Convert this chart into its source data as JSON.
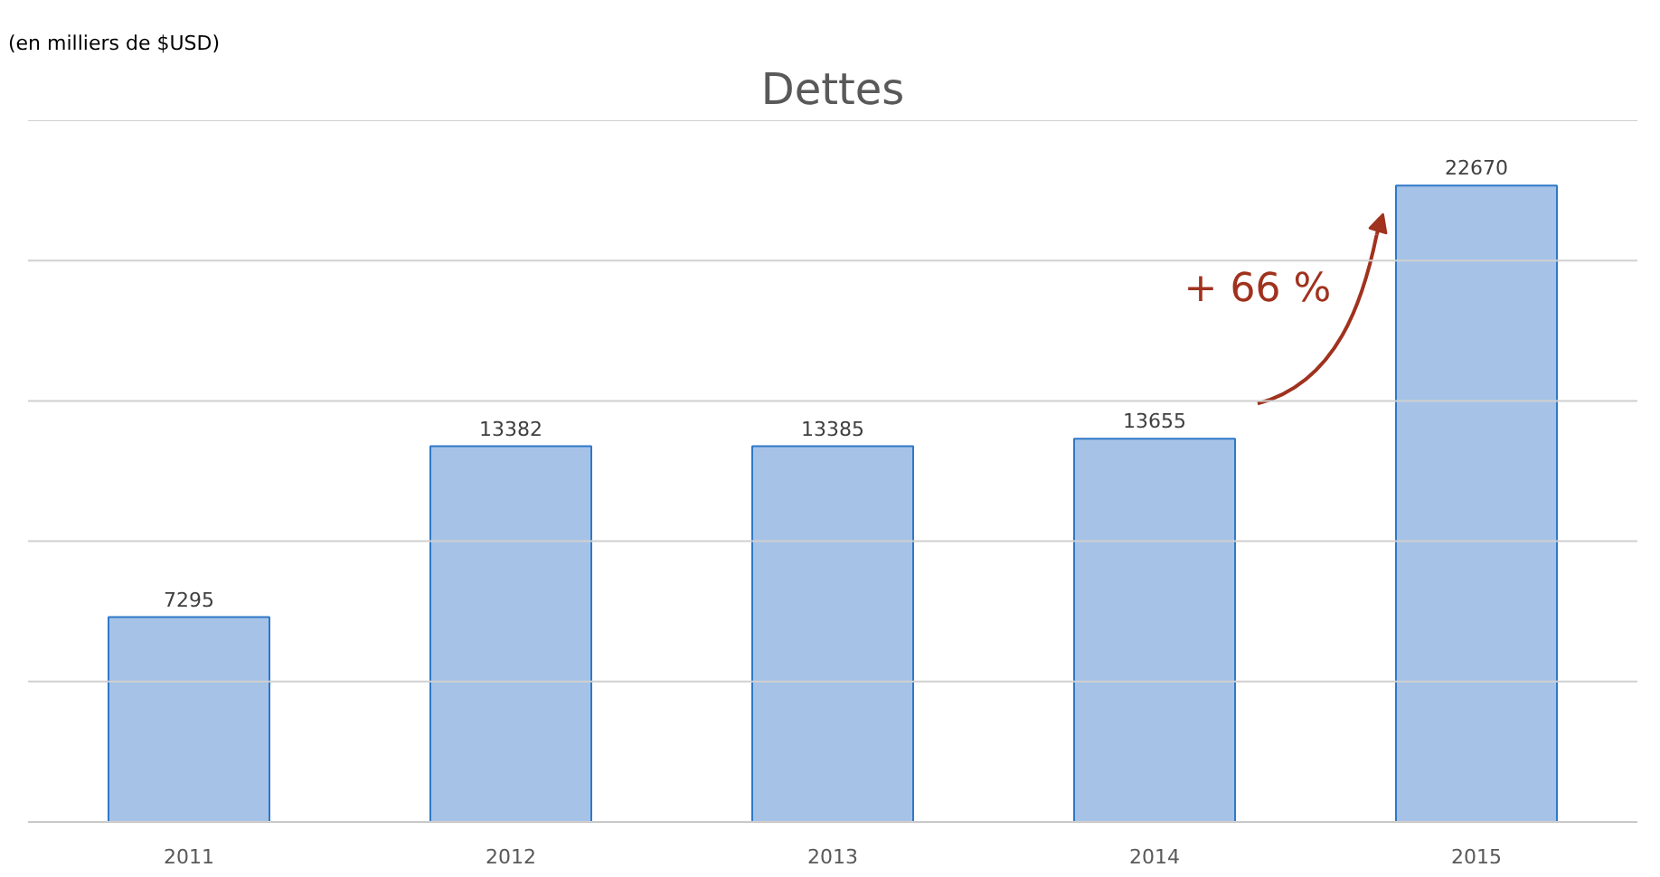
{
  "chart_data": {
    "type": "bar",
    "title": "Dettes",
    "categories": [
      "2011",
      "2012",
      "2013",
      "2014",
      "2015"
    ],
    "values": [
      7295,
      13382,
      13385,
      13655,
      22670
    ],
    "color": "#a6c3e7",
    "yticks": [
      {
        "value": 0,
        "label": null
      },
      {
        "value": 5000,
        "label": null
      },
      {
        "value": 10000,
        "label": null
      },
      {
        "value": 15000,
        "label": null
      },
      {
        "value": 20000,
        "label": null
      },
      {
        "value": 25000,
        "label": null
      }
    ],
    "tick_labels": "x",
    "grid": "y",
    "data_labels": true,
    "annotations": [
      "(en milliers de $USD)",
      "+ 66 %"
    ]
  }
}
